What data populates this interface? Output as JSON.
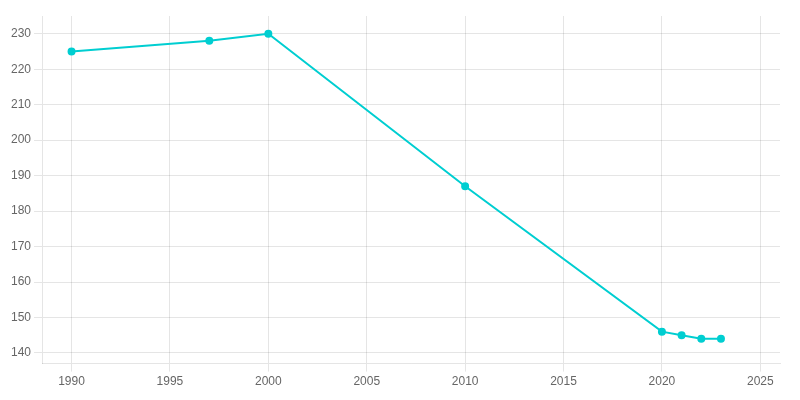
{
  "chart_data": {
    "type": "line",
    "x": [
      1990,
      1997,
      2000,
      2010,
      2020,
      2021,
      2022,
      2023
    ],
    "values": [
      225,
      228,
      230,
      187,
      146,
      145,
      144,
      144
    ],
    "color": "#00CED1",
    "xlim": [
      1988.5,
      2026
    ],
    "ylim": [
      137,
      235
    ],
    "xticks": [
      1990,
      1995,
      2000,
      2005,
      2010,
      2015,
      2020,
      2025
    ],
    "yticks": [
      140,
      150,
      160,
      170,
      180,
      190,
      200,
      210,
      220,
      230
    ],
    "grid": true
  }
}
